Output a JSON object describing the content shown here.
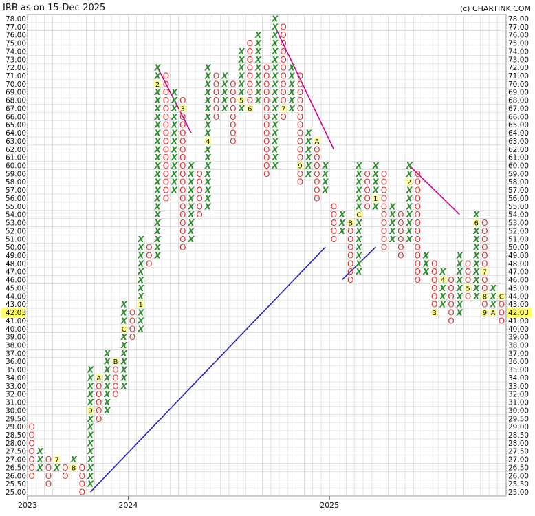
{
  "header": {
    "title": "IRB as on 15-Dec-2025",
    "credit": "(c) CHARTINK.COM"
  },
  "chart_data": {
    "type": "point-and-figure",
    "symbol": "IRB",
    "ylim": [
      25.0,
      78.0
    ],
    "y_levels": [
      "78.00",
      "77.00",
      "76.00",
      "75.00",
      "74.00",
      "73.00",
      "72.00",
      "71.00",
      "70.00",
      "69.00",
      "68.00",
      "67.00",
      "66.00",
      "65.00",
      "64.00",
      "63.00",
      "62.00",
      "61.00",
      "60.00",
      "59.00",
      "58.00",
      "57.00",
      "56.00",
      "55.00",
      "54.00",
      "53.00",
      "52.00",
      "51.00",
      "50.00",
      "49.00",
      "48.00",
      "47.00",
      "46.00",
      "45.00",
      "44.00",
      "43.00",
      "42.00",
      "41.00",
      "40.00",
      "39.00",
      "38.00",
      "37.00",
      "36.00",
      "35.00",
      "34.00",
      "33.00",
      "32.00",
      "31.00",
      "30.00",
      "29.50",
      "29.00",
      "28.50",
      "28.00",
      "27.50",
      "27.00",
      "26.50",
      "26.00",
      "25.50",
      "25.00"
    ],
    "x_labels": [
      {
        "col": 0,
        "label": "2023"
      },
      {
        "col": 12,
        "label": "2024"
      },
      {
        "col": 36,
        "label": "2025"
      }
    ],
    "last_price": "42.03",
    "last_price_level": "42.00",
    "columns": [
      {
        "t": "O",
        "top": "29.00",
        "bot": "26.00"
      },
      {
        "t": "X",
        "top": "27.50",
        "bot": "26.50"
      },
      {
        "t": "O",
        "top": "27.00",
        "bot": "25.50"
      },
      {
        "t": "X",
        "top": "27.00",
        "bot": "26.50",
        "marks": {
          "27.00": "7"
        }
      },
      {
        "t": "O",
        "top": "26.50",
        "bot": "26.00"
      },
      {
        "t": "X",
        "top": "27.00",
        "bot": "26.50",
        "marks": {
          "26.50": "8"
        }
      },
      {
        "t": "O",
        "top": "26.50",
        "bot": "25.00"
      },
      {
        "t": "X",
        "top": "35.00",
        "bot": "25.50",
        "marks": {
          "30.00": "9"
        }
      },
      {
        "t": "O",
        "top": "34.00",
        "bot": "29.50",
        "marks": {
          "34.00": "A"
        }
      },
      {
        "t": "X",
        "top": "37.00",
        "bot": "30.00"
      },
      {
        "t": "O",
        "top": "36.00",
        "bot": "32.00",
        "marks": {
          "36.00": "B"
        }
      },
      {
        "t": "X",
        "top": "43.00",
        "bot": "33.00",
        "marks": {
          "40.00": "C"
        }
      },
      {
        "t": "O",
        "top": "42.00",
        "bot": "39.00"
      },
      {
        "t": "X",
        "top": "51.00",
        "bot": "40.00",
        "marks": {
          "43.00": "1"
        }
      },
      {
        "t": "O",
        "top": "50.00",
        "bot": "48.00"
      },
      {
        "t": "X",
        "top": "72.00",
        "bot": "49.00",
        "marks": {
          "70.00": "2"
        }
      },
      {
        "t": "O",
        "top": "71.00",
        "bot": "56.00"
      },
      {
        "t": "X",
        "top": "69.00",
        "bot": "57.00"
      },
      {
        "t": "O",
        "top": "68.00",
        "bot": "50.00",
        "marks": {
          "67.00": "3"
        }
      },
      {
        "t": "X",
        "top": "60.00",
        "bot": "51.00"
      },
      {
        "t": "O",
        "top": "59.00",
        "bot": "54.00"
      },
      {
        "t": "X",
        "top": "72.00",
        "bot": "55.00",
        "marks": {
          "63.00": "4"
        }
      },
      {
        "t": "O",
        "top": "71.00",
        "bot": "66.00"
      },
      {
        "t": "X",
        "top": "71.00",
        "bot": "67.00"
      },
      {
        "t": "O",
        "top": "70.00",
        "bot": "63.00"
      },
      {
        "t": "X",
        "top": "74.00",
        "bot": "67.00",
        "marks": {
          "68.00": "5"
        }
      },
      {
        "t": "O",
        "top": "75.00",
        "bot": "67.00",
        "marks": {
          "67.00": "6"
        }
      },
      {
        "t": "X",
        "top": "76.00",
        "bot": "68.00"
      },
      {
        "t": "O",
        "top": "72.00",
        "bot": "59.00"
      },
      {
        "t": "X",
        "top": "78.00",
        "bot": "60.00"
      },
      {
        "t": "O",
        "top": "77.00",
        "bot": "66.00",
        "marks": {
          "67.00": "7"
        }
      },
      {
        "t": "X",
        "top": "72.00",
        "bot": "67.00"
      },
      {
        "t": "O",
        "top": "71.00",
        "bot": "58.00",
        "marks": {
          "60.00": "9"
        }
      },
      {
        "t": "X",
        "top": "64.00",
        "bot": "59.00"
      },
      {
        "t": "O",
        "top": "63.00",
        "bot": "56.00",
        "marks": {
          "63.00": "A"
        }
      },
      {
        "t": "X",
        "top": "60.00",
        "bot": "57.00"
      },
      {
        "t": "O",
        "top": "55.00",
        "bot": "51.00"
      },
      {
        "t": "X",
        "top": "54.00",
        "bot": "52.00"
      },
      {
        "t": "O",
        "top": "53.00",
        "bot": "46.00",
        "marks": {
          "53.00": "B"
        }
      },
      {
        "t": "X",
        "top": "60.00",
        "bot": "47.00",
        "marks": {
          "54.00": "C"
        }
      },
      {
        "t": "O",
        "top": "59.00",
        "bot": "55.00"
      },
      {
        "t": "X",
        "top": "60.00",
        "bot": "55.00",
        "marks": {
          "56.00": "1"
        }
      },
      {
        "t": "O",
        "top": "59.00",
        "bot": "50.00"
      },
      {
        "t": "X",
        "top": "55.00",
        "bot": "51.00"
      },
      {
        "t": "O",
        "top": "54.00",
        "bot": "49.00"
      },
      {
        "t": "X",
        "top": "60.00",
        "bot": "51.00",
        "marks": {
          "58.00": "2"
        }
      },
      {
        "t": "O",
        "top": "59.00",
        "bot": "46.00"
      },
      {
        "t": "X",
        "top": "49.00",
        "bot": "47.00"
      },
      {
        "t": "O",
        "top": "48.00",
        "bot": "42.00",
        "marks": {
          "42.00": "3"
        }
      },
      {
        "t": "X",
        "top": "47.00",
        "bot": "43.00",
        "marks": {
          "46.00": "4"
        }
      },
      {
        "t": "O",
        "top": "46.00",
        "bot": "41.00"
      },
      {
        "t": "X",
        "top": "49.00",
        "bot": "42.00"
      },
      {
        "t": "O",
        "top": "48.00",
        "bot": "44.00",
        "marks": {
          "45.00": "5"
        }
      },
      {
        "t": "X",
        "top": "54.00",
        "bot": "44.00",
        "marks": {
          "53.00": "6"
        }
      },
      {
        "t": "O",
        "top": "53.00",
        "bot": "42.00",
        "marks": {
          "47.00": "7",
          "44.00": "8",
          "42.00": "9"
        }
      },
      {
        "t": "X",
        "top": "45.00",
        "bot": "42.00",
        "marks": {
          "42.00": "A"
        }
      },
      {
        "t": "O",
        "top": "44.00",
        "bot": "41.00",
        "marks": {
          "44.00": "C"
        }
      }
    ],
    "trendlines": [
      {
        "kind": "resistance",
        "color": "#cc0099",
        "from": {
          "col": 15,
          "level": "72.00"
        },
        "to": {
          "col": 19,
          "level": "64.00"
        }
      },
      {
        "kind": "resistance",
        "color": "#cc0099",
        "from": {
          "col": 29,
          "level": "77.00"
        },
        "to": {
          "col": 36,
          "level": "62.00"
        }
      },
      {
        "kind": "resistance",
        "color": "#cc0099",
        "from": {
          "col": 45,
          "level": "60.00"
        },
        "to": {
          "col": 51,
          "level": "54.00"
        }
      },
      {
        "kind": "support",
        "color": "#1f1fcc",
        "from": {
          "col": 7,
          "level": "25.00"
        },
        "to": {
          "col": 35,
          "level": "50.00"
        }
      },
      {
        "kind": "support",
        "color": "#1f1fcc",
        "from": {
          "col": 37,
          "level": "46.00"
        },
        "to": {
          "col": 41,
          "level": "50.00"
        }
      }
    ],
    "colors": {
      "x": "#2e8b2e",
      "o": "#e03030",
      "month_marker_bg": "#ffff99",
      "grid": "#d0d0d0",
      "last_price_bg": "#ffff66"
    }
  }
}
